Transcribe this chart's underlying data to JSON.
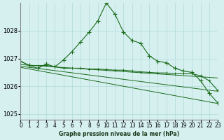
{
  "background_color": "#d6f0f0",
  "grid_color": "#b0d8d8",
  "line_color": "#1a6b1a",
  "title": "Graphe pression niveau de la mer (hPa)",
  "xlabel": "Graphe pression niveau de la mer (hPa)",
  "ylim": [
    1024.8,
    1029.0
  ],
  "xlim": [
    0,
    23
  ],
  "yticks": [
    1025,
    1026,
    1027,
    1028
  ],
  "xtick_labels": [
    "0",
    "1",
    "2",
    "3",
    "4",
    "5",
    "6",
    "7",
    "8",
    "9",
    "10",
    "11",
    "12",
    "13",
    "14",
    "15",
    "16",
    "17",
    "18",
    "19",
    "20",
    "21",
    "22",
    "23"
  ],
  "series1_x": [
    0,
    1,
    2,
    3,
    4,
    5,
    6,
    7,
    8,
    9,
    10,
    11,
    12,
    13,
    14,
    15,
    16,
    17,
    18,
    19,
    20,
    21,
    22,
    23
  ],
  "series1_y": [
    1026.9,
    1026.75,
    1026.65,
    1026.8,
    1026.7,
    1026.95,
    1027.25,
    1027.6,
    1027.95,
    1028.35,
    1029.0,
    1028.6,
    1027.95,
    1027.65,
    1027.55,
    1027.1,
    1026.9,
    1026.85,
    1026.65,
    1026.55,
    1026.5,
    1026.2,
    1025.75,
    1025.4
  ],
  "series2_x": [
    0,
    1,
    3,
    4,
    5,
    6,
    7,
    8,
    9,
    10,
    11,
    12,
    13,
    14,
    15,
    16,
    17,
    18,
    19,
    20,
    21,
    22,
    23
  ],
  "series2_y": [
    1026.9,
    1026.75,
    1026.75,
    1026.7,
    1026.65,
    1026.65,
    1026.65,
    1026.62,
    1026.62,
    1026.6,
    1026.58,
    1026.58,
    1026.55,
    1026.52,
    1026.5,
    1026.48,
    1026.48,
    1026.45,
    1026.45,
    1026.45,
    1026.38,
    1026.2,
    1025.85
  ],
  "series3_x": [
    0,
    23
  ],
  "series3_y": [
    1026.78,
    1026.3
  ],
  "series4_x": [
    0,
    23
  ],
  "series4_y": [
    1026.72,
    1025.82
  ],
  "series5_x": [
    0,
    23
  ],
  "series5_y": [
    1026.68,
    1025.38
  ]
}
